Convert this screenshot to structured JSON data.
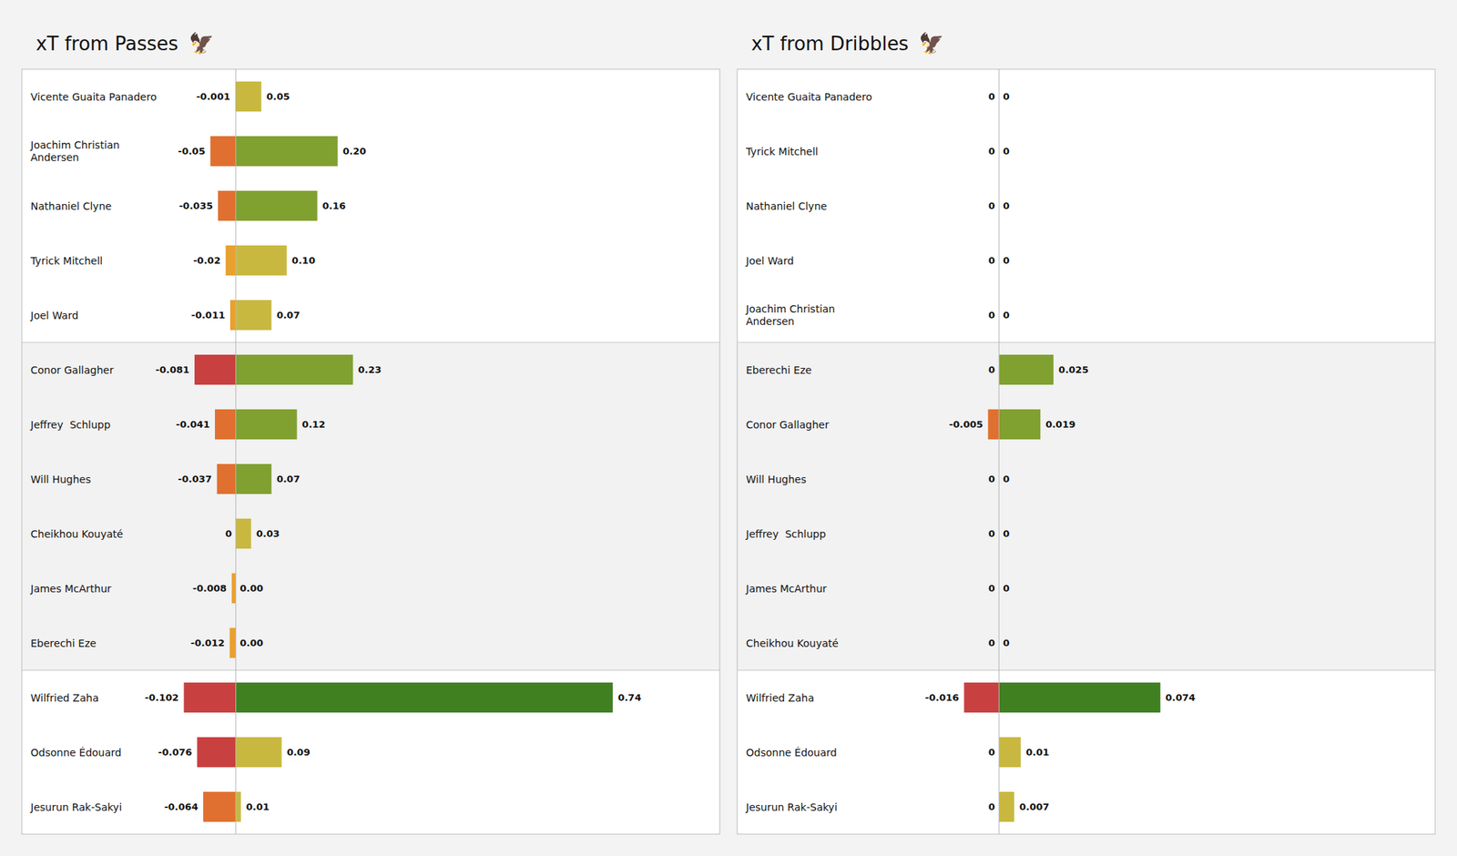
{
  "chart_data": [
    {
      "type": "bar",
      "orientation": "horizontal",
      "title": "xT from Passes",
      "annotations": [
        "🦅"
      ],
      "categories": [
        "Vicente Guaita Panadero",
        "Joachim Christian\nAndersen",
        "Nathaniel Clyne",
        "Tyrick Mitchell",
        "Joel Ward",
        "Conor Gallagher",
        "Jeffrey  Schlupp",
        "Will Hughes",
        "Cheikhou Kouyaté",
        "James McArthur",
        "Eberechi Eze",
        "Wilfried Zaha",
        "Odsonne Édouard",
        "Jesurun Rak-Sakyi"
      ],
      "series": [
        {
          "values": [
            -0.001,
            -0.05,
            -0.035,
            -0.02,
            -0.011,
            -0.081,
            -0.041,
            -0.037,
            0.0,
            -0.008,
            -0.012,
            -0.102,
            -0.076,
            -0.064
          ],
          "value_labels": [
            "-0.001",
            "-0.05",
            "-0.035",
            "-0.02",
            "-0.011",
            "-0.081",
            "-0.041",
            "-0.037",
            "0",
            "-0.008",
            "-0.012",
            "-0.102",
            "-0.076",
            "-0.064"
          ],
          "colors": [
            "#c8b840",
            "#e07030",
            "#e07030",
            "#e8a030",
            "#e8a030",
            "#c84040",
            "#e07030",
            "#e07030",
            "#e8a030",
            "#e8a030",
            "#e8a030",
            "#c84040",
            "#c84040",
            "#e07030"
          ]
        },
        {
          "values": [
            0.05,
            0.2,
            0.16,
            0.1,
            0.07,
            0.23,
            0.12,
            0.07,
            0.03,
            0.0,
            0.0,
            0.74,
            0.09,
            0.01
          ],
          "value_labels": [
            "0.05",
            "0.20",
            "0.16",
            "0.10",
            "0.07",
            "0.23",
            "0.12",
            "0.07",
            "0.03",
            "0.00",
            "0.00",
            "0.74",
            "0.09",
            "0.01"
          ],
          "colors": [
            "#c8b840",
            "#80a030",
            "#80a030",
            "#c8b840",
            "#c8b840",
            "#80a030",
            "#80a030",
            "#80a030",
            "#c8b840",
            "#c8b840",
            "#c8b840",
            "#408020",
            "#c8b840",
            "#c8b840"
          ]
        }
      ],
      "xlim": [
        -0.42,
        0.95
      ],
      "data_labels": true,
      "tick_labels": false,
      "grid": false
    },
    {
      "type": "bar",
      "orientation": "horizontal",
      "title": "xT from Dribbles",
      "annotations": [
        "🦅"
      ],
      "categories": [
        "Vicente Guaita Panadero",
        "Tyrick Mitchell",
        "Nathaniel Clyne",
        "Joel Ward",
        "Joachim Christian\nAndersen",
        "Eberechi Eze",
        "Conor Gallagher",
        "Will Hughes",
        "Jeffrey  Schlupp",
        "James McArthur",
        "Cheikhou Kouyaté",
        "Wilfried Zaha",
        "Odsonne Édouard",
        "Jesurun Rak-Sakyi"
      ],
      "series": [
        {
          "values": [
            0,
            0,
            0,
            0,
            0,
            0,
            -0.005,
            0,
            0,
            0,
            0,
            -0.016,
            0,
            0
          ],
          "value_labels": [
            "0",
            "0",
            "0",
            "0",
            "0",
            "0",
            "-0.005",
            "0",
            "0",
            "0",
            "0",
            "-0.016",
            "0",
            "0"
          ],
          "colors": [
            "#c8b840",
            "#c8b840",
            "#c8b840",
            "#c8b840",
            "#c8b840",
            "#c8b840",
            "#e07030",
            "#c8b840",
            "#c8b840",
            "#c8b840",
            "#c8b840",
            "#c84040",
            "#c8b840",
            "#c8b840"
          ]
        },
        {
          "values": [
            0,
            0,
            0,
            0,
            0,
            0.025,
            0.019,
            0,
            0,
            0,
            0,
            0.074,
            0.01,
            0.007
          ],
          "value_labels": [
            "0",
            "0",
            "0",
            "0",
            "0",
            "0.025",
            "0.019",
            "0",
            "0",
            "0",
            "0",
            "0.074",
            "0.01",
            "0.007"
          ],
          "colors": [
            "#c8b840",
            "#c8b840",
            "#c8b840",
            "#c8b840",
            "#c8b840",
            "#80a030",
            "#80a030",
            "#c8b840",
            "#c8b840",
            "#c8b840",
            "#c8b840",
            "#408020",
            "#c8b840",
            "#c8b840"
          ]
        }
      ],
      "xlim": [
        -0.12,
        0.2
      ],
      "data_labels": true,
      "tick_labels": false,
      "grid": false
    }
  ]
}
